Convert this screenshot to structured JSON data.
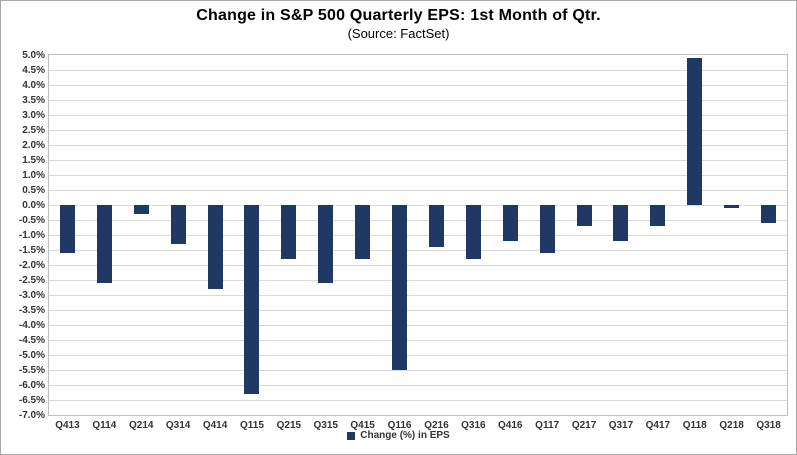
{
  "window": {
    "background": "#ffffff",
    "border_color": "#a8a8a8"
  },
  "chart_data": {
    "type": "bar",
    "title": "Change in S&P 500 Quarterly EPS: 1st Month of Qtr.",
    "subtitle": "(Source: FactSet)",
    "categories": [
      "Q413",
      "Q114",
      "Q214",
      "Q314",
      "Q414",
      "Q115",
      "Q215",
      "Q315",
      "Q415",
      "Q116",
      "Q216",
      "Q316",
      "Q416",
      "Q117",
      "Q217",
      "Q317",
      "Q417",
      "Q118",
      "Q218",
      "Q318"
    ],
    "values": [
      -1.6,
      -2.6,
      -0.3,
      -1.3,
      -2.8,
      -6.3,
      -1.8,
      -2.6,
      -1.8,
      -5.5,
      -1.4,
      -1.8,
      -1.2,
      -1.6,
      -0.7,
      -1.2,
      -0.7,
      4.9,
      -0.1,
      -0.6
    ],
    "series_name": "Change (%) in EPS",
    "xlabel": "",
    "ylabel": "",
    "ylim": [
      -7.0,
      5.0
    ],
    "ytick_step": 0.5,
    "ytick_format": "percent_1dp",
    "grid": true,
    "legend_position": "bottom",
    "bar_color": "#1f3864",
    "gridline_color": "#d9d9d9",
    "axis_border_color": "#bfbfbf",
    "tick_label_color": "#333333"
  }
}
